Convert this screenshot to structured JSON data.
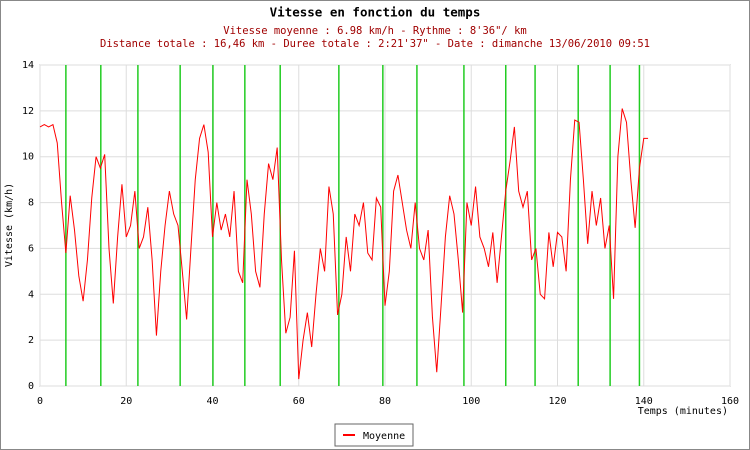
{
  "chart_data": {
    "type": "line",
    "title": "Vitesse en fonction du temps",
    "subtitle": "Vitesse moyenne : 6.98 km/h - Rythme : 8'36\"/ km",
    "subtitle2": "Distance totale : 16,46 km - Duree totale : 2:21'37\" - Date : dimanche 13/06/2010 09:51",
    "xlabel": "Temps (minutes)",
    "ylabel": "Vitesse (km/h)",
    "xlim": [
      0,
      160
    ],
    "xticks": [
      0,
      20,
      40,
      60,
      80,
      100,
      120,
      140,
      160
    ],
    "ylim": [
      0,
      14
    ],
    "yticks": [
      0,
      2,
      4,
      6,
      8,
      10,
      12,
      14
    ],
    "grid": true,
    "legend": "bottom",
    "vlines": {
      "color": "#22cc22",
      "x": [
        6.0,
        14.1,
        22.7,
        32.5,
        40.1,
        47.5,
        55.7,
        69.3,
        79.5,
        87.4,
        98.3,
        108.0,
        114.8,
        124.8,
        132.2,
        139.0
      ]
    },
    "x": [
      0,
      1,
      2,
      3,
      4,
      5,
      6,
      7,
      8,
      9,
      10,
      11,
      12,
      13,
      14,
      15,
      16,
      17,
      18,
      19,
      20,
      21,
      22,
      23,
      24,
      25,
      26,
      27,
      28,
      29,
      30,
      31,
      32,
      33,
      34,
      35,
      36,
      37,
      38,
      39,
      40,
      41,
      42,
      43,
      44,
      45,
      46,
      47,
      48,
      49,
      50,
      51,
      52,
      53,
      54,
      55,
      56,
      57,
      58,
      59,
      60,
      61,
      62,
      63,
      64,
      65,
      66,
      67,
      68,
      69,
      70,
      71,
      72,
      73,
      74,
      75,
      76,
      77,
      78,
      79,
      80,
      81,
      82,
      83,
      84,
      85,
      86,
      87,
      88,
      89,
      90,
      91,
      92,
      93,
      94,
      95,
      96,
      97,
      98,
      99,
      100,
      101,
      102,
      103,
      104,
      105,
      106,
      107,
      108,
      109,
      110,
      111,
      112,
      113,
      114,
      115,
      116,
      117,
      118,
      119,
      120,
      121,
      122,
      123,
      124,
      125,
      126,
      127,
      128,
      129,
      130,
      131,
      132,
      133,
      134,
      135,
      136,
      137,
      138,
      139,
      140,
      141
    ],
    "series": [
      {
        "name": "Moyenne",
        "color": "#ff0000",
        "values": [
          11.3,
          11.4,
          11.3,
          11.4,
          10.6,
          8.0,
          5.8,
          8.3,
          6.8,
          4.8,
          3.7,
          5.5,
          8.2,
          10.0,
          9.5,
          10.1,
          6.0,
          3.6,
          6.5,
          8.8,
          6.5,
          7.0,
          8.5,
          6.0,
          6.5,
          7.8,
          5.5,
          2.2,
          5.0,
          7.0,
          8.5,
          7.5,
          7.0,
          5.0,
          2.9,
          6.0,
          9.0,
          10.8,
          11.4,
          10.2,
          6.5,
          8.0,
          6.8,
          7.5,
          6.5,
          8.5,
          5.0,
          4.5,
          9.0,
          7.5,
          5.0,
          4.3,
          7.5,
          9.7,
          9.0,
          10.4,
          5.5,
          2.3,
          3.0,
          5.9,
          0.3,
          2.0,
          3.2,
          1.7,
          4.0,
          6.0,
          5.0,
          8.7,
          7.5,
          3.1,
          4.0,
          6.5,
          5.0,
          7.5,
          7.0,
          8.0,
          5.8,
          5.5,
          8.2,
          7.8,
          3.5,
          5.0,
          8.5,
          9.2,
          8.0,
          6.8,
          6.0,
          8.0,
          6.0,
          5.5,
          6.8,
          3.0,
          0.6,
          3.5,
          6.5,
          8.3,
          7.5,
          5.5,
          3.2,
          8.0,
          7.0,
          8.7,
          6.5,
          6.0,
          5.2,
          6.7,
          4.5,
          6.5,
          8.5,
          9.8,
          11.3,
          8.5,
          7.8,
          8.5,
          5.5,
          6.0,
          4.0,
          3.8,
          6.7,
          5.2,
          6.7,
          6.5,
          5.0,
          9.0,
          11.6,
          11.5,
          9.0,
          6.2,
          8.5,
          7.0,
          8.2,
          6.0,
          7.0,
          3.8,
          10.0,
          12.1,
          11.5,
          9.0,
          6.9,
          9.5,
          10.8,
          10.8
        ]
      }
    ]
  }
}
